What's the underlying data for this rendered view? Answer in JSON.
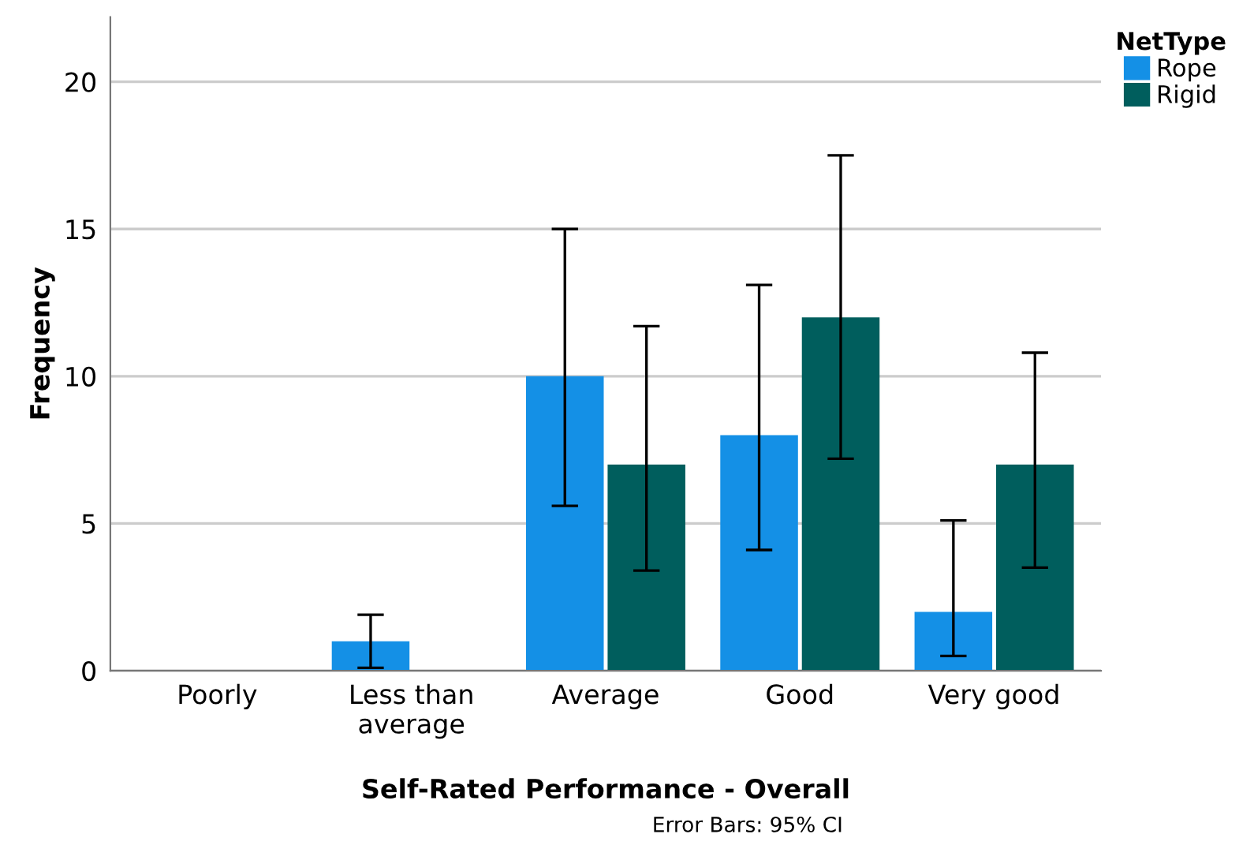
{
  "chart_data": {
    "type": "bar",
    "categories": [
      "Poorly",
      "Less than\naverage",
      "Average",
      "Good",
      "Very good"
    ],
    "series": [
      {
        "name": "Rope",
        "color": "#1490e6",
        "values": [
          0,
          1,
          10,
          8,
          2
        ],
        "errors": [
          null,
          [
            0.1,
            1.9
          ],
          [
            5.6,
            15.0
          ],
          [
            4.1,
            13.1
          ],
          [
            0.5,
            5.1
          ]
        ]
      },
      {
        "name": "Rigid",
        "color": "#005e5d",
        "values": [
          0,
          0,
          7,
          12,
          7
        ],
        "errors": [
          null,
          null,
          [
            3.4,
            11.7
          ],
          [
            7.2,
            17.5
          ],
          [
            3.5,
            10.8
          ]
        ]
      }
    ],
    "xlabel": "Self-Rated Performance - Overall",
    "ylabel": "Frequency",
    "legend_title": "NetType",
    "ylim": [
      0,
      22.2
    ],
    "yticks": [
      0,
      5,
      10,
      15,
      20
    ],
    "grid": "y",
    "legend": "top right",
    "annotations": [
      "Error Bars: 95% CI"
    ]
  }
}
